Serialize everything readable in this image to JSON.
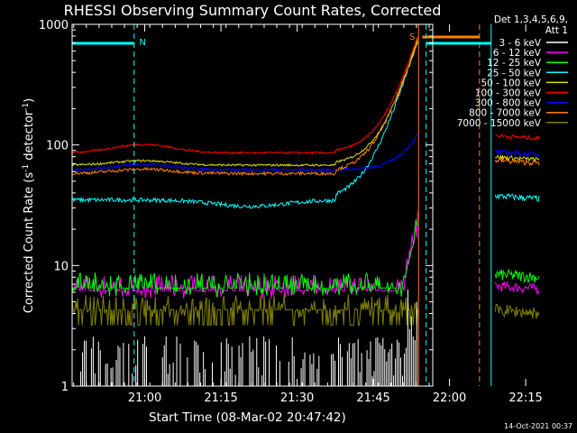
{
  "chart_data": {
    "type": "line",
    "title": "RHESSI Observing Summary Count Rates, Corrected",
    "xlabel": "Start Time (08-Mar-02 20:47:42)",
    "ylabel_parts": [
      "Corrected Count Rate (s",
      "-1",
      " detector",
      "-1",
      ")"
    ],
    "yscale": "log",
    "ylim": [
      1,
      1000
    ],
    "y_ticks": [
      {
        "value": 1,
        "label": "1"
      },
      {
        "value": 10,
        "label": "10"
      },
      {
        "value": 100,
        "label": "100"
      },
      {
        "value": 1000,
        "label": "1000"
      }
    ],
    "xlim_min": [
      -2,
      69
    ],
    "x_ticks": [
      {
        "value": 12.3,
        "label": "21:00"
      },
      {
        "value": 27.3,
        "label": "21:15"
      },
      {
        "value": 42.3,
        "label": "21:30"
      },
      {
        "value": 57.3,
        "label": "21:45"
      },
      {
        "value": 72.3,
        "label": "22:00"
      },
      {
        "value": 87.3,
        "label": "22:15"
      }
    ],
    "detector_note": [
      "Det 1,3,4,5,6,9,",
      "Att 1"
    ],
    "legend_placement": "right",
    "series": [
      {
        "name": "3 - 6 keV",
        "color": "#ffffff"
      },
      {
        "name": "6 - 12 keV",
        "color": "#ff00ff"
      },
      {
        "name": "12 - 25 keV",
        "color": "#00ff00"
      },
      {
        "name": "25 - 50 keV",
        "color": "#00ffff"
      },
      {
        "name": "50 - 100 keV",
        "color": "#e0e000"
      },
      {
        "name": "100 - 300 keV",
        "color": "#ff0000"
      },
      {
        "name": "300 - 800 keV",
        "color": "#0000ff"
      },
      {
        "name": "800 - 7000 keV",
        "color": "#ff8000"
      },
      {
        "name": "7000 - 15000 keV",
        "color": "#808000"
      }
    ],
    "flags": [
      {
        "label": "N",
        "color": "#00ffff"
      },
      {
        "label": "S",
        "color": "#ff8000"
      }
    ],
    "footer_timestamp": "14-Oct-2021 00:37"
  }
}
